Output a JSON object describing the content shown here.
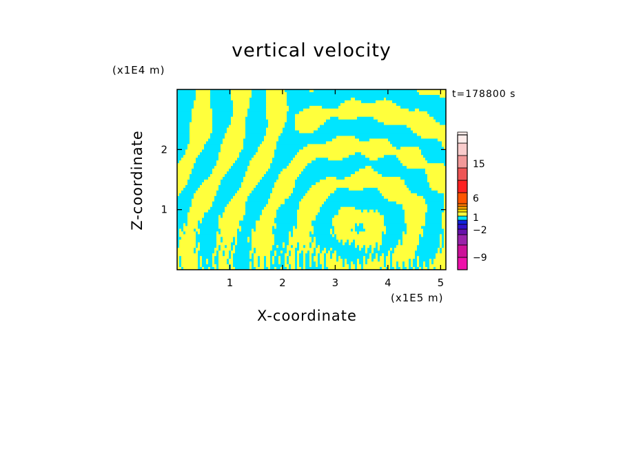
{
  "chart_data": {
    "type": "heatmap",
    "title": "vertical velocity",
    "time_label": "t=178800 s",
    "x_axis": {
      "label": "X-coordinate",
      "unit_label": "(x1E5 m)",
      "range": [
        0,
        5.1
      ],
      "ticks": [
        1,
        2,
        3,
        4,
        5
      ],
      "tick_labels": [
        "1",
        "2",
        "3",
        "4",
        "5"
      ]
    },
    "y_axis": {
      "label": "Z-coordinate",
      "unit_label": "(x1E4 m)",
      "range": [
        0,
        3.0
      ],
      "ticks": [
        1,
        2
      ],
      "tick_labels": [
        "1",
        "2"
      ]
    },
    "field_colors": {
      "positive": "#ffff3c",
      "negative": "#00e5ff"
    },
    "colorbar": {
      "levels_bottom_to_top": [
        {
          "color": "#ee11aa"
        },
        {
          "color": "#cc1199"
        },
        {
          "color": "#9922aa"
        },
        {
          "color": "#6611aa"
        },
        {
          "color": "#3311cc"
        },
        {
          "color": "#1122dd"
        },
        {
          "color": "#00e5ff"
        },
        {
          "color": "#ffff3c"
        },
        {
          "color": "#ffdd00"
        },
        {
          "color": "#ffaa00"
        },
        {
          "color": "#ff7700"
        },
        {
          "color": "#ff5500"
        },
        {
          "color": "#ff2222"
        },
        {
          "color": "#ee5555"
        },
        {
          "color": "#f29999"
        },
        {
          "color": "#f9cccc"
        },
        {
          "color": "#fdecea"
        }
      ],
      "tick_labels": [
        "15",
        "6",
        "1",
        "−2",
        "−9"
      ]
    }
  }
}
